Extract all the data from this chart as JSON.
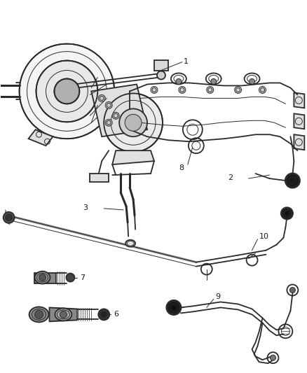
{
  "bg_color": "#ffffff",
  "fig_width": 4.38,
  "fig_height": 5.33,
  "dpi": 100,
  "line_color": "#2a2a2a",
  "label_color": "#1a1a1a",
  "lw_main": 1.3,
  "lw_thin": 0.7,
  "lw_thick": 2.2,
  "label_fontsize": 8.0
}
